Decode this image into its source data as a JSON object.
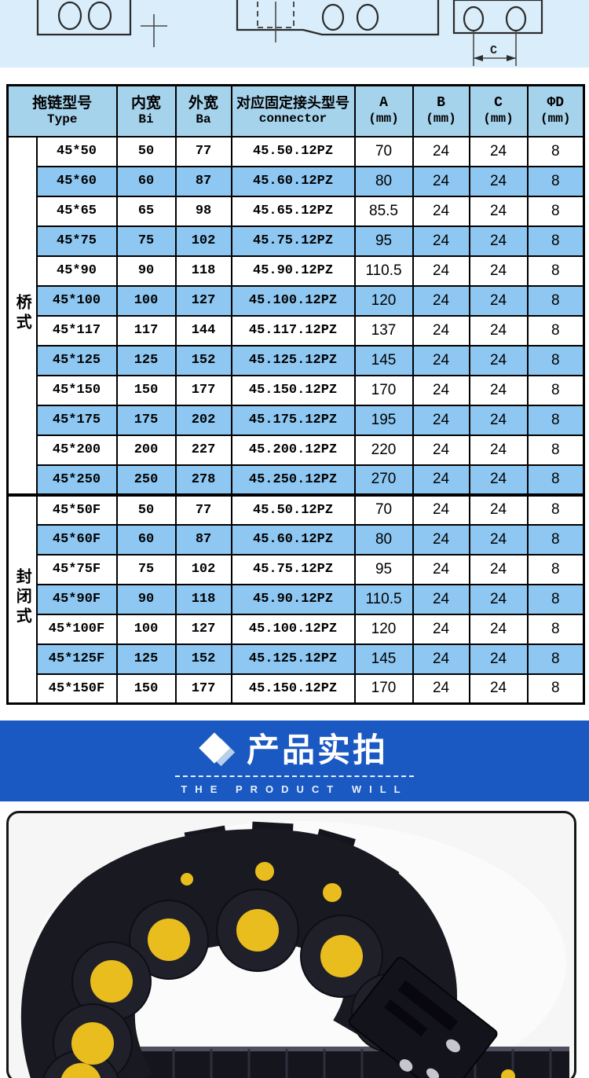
{
  "drawings": {
    "dim_label": "C"
  },
  "spec_table": {
    "header": {
      "type": {
        "cn": "拖链型号",
        "en": "Type"
      },
      "bi": {
        "cn": "内宽",
        "en": "Bi"
      },
      "ba": {
        "cn": "外宽",
        "en": "Ba"
      },
      "connector": {
        "cn": "对应固定接头型号",
        "en": "connector"
      },
      "a": {
        "cn": "A",
        "en": "(mm)"
      },
      "b": {
        "cn": "B",
        "en": "(mm)"
      },
      "c": {
        "cn": "C",
        "en": "(mm)"
      },
      "d": {
        "cn": "ΦD",
        "en": "(mm)"
      }
    },
    "groups": [
      {
        "label": "桥式",
        "rows": [
          {
            "type": "45*50",
            "bi": "50",
            "ba": "77",
            "connector": "45.50.12PZ",
            "a": "70",
            "b": "24",
            "c": "24",
            "d": "8"
          },
          {
            "type": "45*60",
            "bi": "60",
            "ba": "87",
            "connector": "45.60.12PZ",
            "a": "80",
            "b": "24",
            "c": "24",
            "d": "8"
          },
          {
            "type": "45*65",
            "bi": "65",
            "ba": "98",
            "connector": "45.65.12PZ",
            "a": "85.5",
            "b": "24",
            "c": "24",
            "d": "8"
          },
          {
            "type": "45*75",
            "bi": "75",
            "ba": "102",
            "connector": "45.75.12PZ",
            "a": "95",
            "b": "24",
            "c": "24",
            "d": "8"
          },
          {
            "type": "45*90",
            "bi": "90",
            "ba": "118",
            "connector": "45.90.12PZ",
            "a": "110.5",
            "b": "24",
            "c": "24",
            "d": "8"
          },
          {
            "type": "45*100",
            "bi": "100",
            "ba": "127",
            "connector": "45.100.12PZ",
            "a": "120",
            "b": "24",
            "c": "24",
            "d": "8"
          },
          {
            "type": "45*117",
            "bi": "117",
            "ba": "144",
            "connector": "45.117.12PZ",
            "a": "137",
            "b": "24",
            "c": "24",
            "d": "8"
          },
          {
            "type": "45*125",
            "bi": "125",
            "ba": "152",
            "connector": "45.125.12PZ",
            "a": "145",
            "b": "24",
            "c": "24",
            "d": "8"
          },
          {
            "type": "45*150",
            "bi": "150",
            "ba": "177",
            "connector": "45.150.12PZ",
            "a": "170",
            "b": "24",
            "c": "24",
            "d": "8"
          },
          {
            "type": "45*175",
            "bi": "175",
            "ba": "202",
            "connector": "45.175.12PZ",
            "a": "195",
            "b": "24",
            "c": "24",
            "d": "8"
          },
          {
            "type": "45*200",
            "bi": "200",
            "ba": "227",
            "connector": "45.200.12PZ",
            "a": "220",
            "b": "24",
            "c": "24",
            "d": "8"
          },
          {
            "type": "45*250",
            "bi": "250",
            "ba": "278",
            "connector": "45.250.12PZ",
            "a": "270",
            "b": "24",
            "c": "24",
            "d": "8"
          }
        ]
      },
      {
        "label": "封闭式",
        "rows": [
          {
            "type": "45*50F",
            "bi": "50",
            "ba": "77",
            "connector": "45.50.12PZ",
            "a": "70",
            "b": "24",
            "c": "24",
            "d": "8"
          },
          {
            "type": "45*60F",
            "bi": "60",
            "ba": "87",
            "connector": "45.60.12PZ",
            "a": "80",
            "b": "24",
            "c": "24",
            "d": "8"
          },
          {
            "type": "45*75F",
            "bi": "75",
            "ba": "102",
            "connector": "45.75.12PZ",
            "a": "95",
            "b": "24",
            "c": "24",
            "d": "8"
          },
          {
            "type": "45*90F",
            "bi": "90",
            "ba": "118",
            "connector": "45.90.12PZ",
            "a": "110.5",
            "b": "24",
            "c": "24",
            "d": "8"
          },
          {
            "type": "45*100F",
            "bi": "100",
            "ba": "127",
            "connector": "45.100.12PZ",
            "a": "120",
            "b": "24",
            "c": "24",
            "d": "8"
          },
          {
            "type": "45*125F",
            "bi": "125",
            "ba": "152",
            "connector": "45.125.12PZ",
            "a": "145",
            "b": "24",
            "c": "24",
            "d": "8"
          },
          {
            "type": "45*150F",
            "bi": "150",
            "ba": "177",
            "connector": "45.150.12PZ",
            "a": "170",
            "b": "24",
            "c": "24",
            "d": "8"
          }
        ]
      }
    ]
  },
  "banner": {
    "title": "产品实拍",
    "subtitle": "THE PRODUCT WILL"
  },
  "colors": {
    "drawing_bg": "#d9edfa",
    "header_bg": "#a6d3ec",
    "row_alt_bg": "#8ec8f2",
    "banner_bg": "#1a58c2",
    "chain_yellow": "#e9bd1e"
  }
}
